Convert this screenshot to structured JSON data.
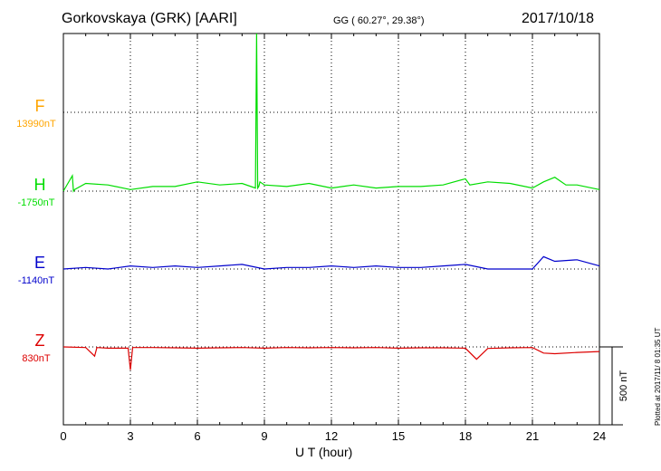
{
  "header": {
    "station": "Gorkovskaya (GRK)  [AARI]",
    "coords": "GG ( 60.27°,  29.38°)",
    "date": "2017/10/18"
  },
  "footer": {
    "plotted": "Plotted at 2017/11/ 8 01:35 UT"
  },
  "chart_data": {
    "type": "line",
    "title": "Gorkovskaya (GRK)  [AARI]",
    "xlabel": "U T (hour)",
    "ylabel": "",
    "xlim": [
      0,
      24
    ],
    "xticks": [
      0,
      3,
      6,
      9,
      12,
      15,
      18,
      21,
      24
    ],
    "x_tick_labels": [
      "0",
      "3",
      "6",
      "9",
      "12",
      "15",
      "18",
      "21",
      "24"
    ],
    "grid": true,
    "scale_bar": {
      "label": "500 nT",
      "value": 500
    },
    "series": [
      {
        "name": "F",
        "baseline_label": "13990nT",
        "color": "#ffa500",
        "x": [],
        "values": []
      },
      {
        "name": "H",
        "baseline_label": "-1750nT",
        "color": "#00dd00",
        "x": [
          0,
          0.4,
          0.45,
          0.5,
          1,
          2,
          3,
          4,
          5,
          6,
          7,
          8,
          8.6,
          8.65,
          8.7,
          8.75,
          8.8,
          9,
          10,
          11,
          12,
          13,
          14,
          15,
          16,
          17,
          18,
          18.2,
          19,
          20,
          21,
          21.5,
          22,
          22.5,
          23,
          24
        ],
        "values": [
          -1750,
          -1700,
          -1750,
          -1745,
          -1725,
          -1730,
          -1745,
          -1735,
          -1735,
          -1720,
          -1730,
          -1725,
          -1740,
          -610,
          -1740,
          -1735,
          -1720,
          -1730,
          -1735,
          -1725,
          -1740,
          -1730,
          -1740,
          -1735,
          -1735,
          -1730,
          -1710,
          -1730,
          -1720,
          -1725,
          -1740,
          -1720,
          -1705,
          -1730,
          -1730,
          -1745
        ]
      },
      {
        "name": "E",
        "baseline_label": "-1140nT",
        "color": "#0000cc",
        "x": [
          0,
          1,
          2,
          3,
          4,
          5,
          6,
          7,
          8,
          9,
          10,
          11,
          12,
          13,
          14,
          15,
          16,
          17,
          18,
          19,
          20,
          21,
          21.5,
          22,
          23,
          24
        ],
        "values": [
          -1140,
          -1135,
          -1140,
          -1130,
          -1135,
          -1130,
          -1135,
          -1130,
          -1125,
          -1140,
          -1135,
          -1135,
          -1130,
          -1135,
          -1130,
          -1135,
          -1135,
          -1130,
          -1125,
          -1140,
          -1140,
          -1140,
          -1100,
          -1115,
          -1110,
          -1130
        ]
      },
      {
        "name": "Z",
        "baseline_label": "830nT",
        "color": "#dd0000",
        "x": [
          0,
          1,
          1.4,
          1.5,
          2,
          2.9,
          3,
          3.1,
          4,
          5,
          6,
          7,
          8,
          9,
          10,
          11,
          12,
          13,
          14,
          15,
          16,
          17,
          18,
          18.5,
          19,
          20,
          21,
          21.5,
          22,
          23,
          24
        ],
        "values": [
          830,
          828,
          800,
          828,
          826,
          826,
          755,
          828,
          828,
          827,
          826,
          827,
          828,
          826,
          828,
          827,
          828,
          827,
          828,
          826,
          827,
          827,
          826,
          790,
          825,
          827,
          828,
          810,
          808,
          812,
          815
        ]
      }
    ]
  }
}
